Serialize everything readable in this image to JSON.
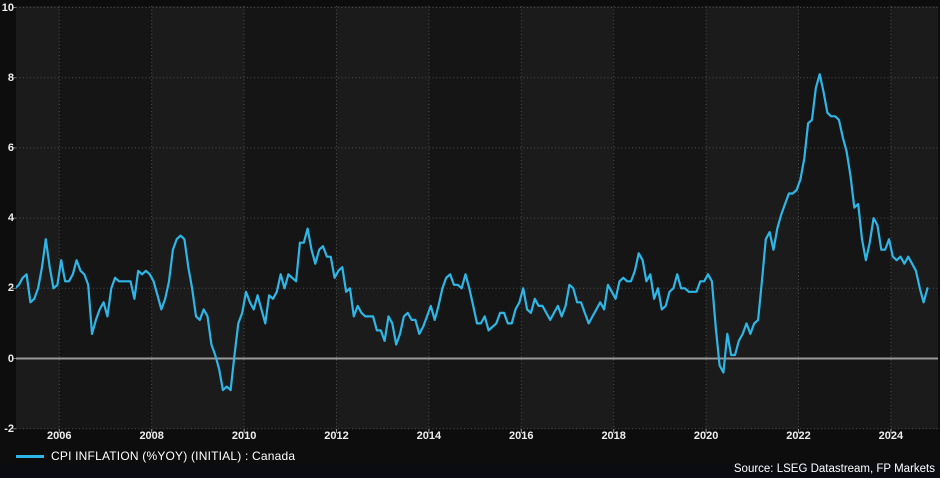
{
  "chart": {
    "legend_label": "CPI INFLATION (%YOY) (INITIAL) : Canada",
    "source_text": "Source: LSEG Datastream, FP Markets",
    "line_color": "#2db6e6",
    "zero_line_color": "#9a9a9a",
    "grid_color": "#4f4f4f",
    "band_light_color": "#1b1b1b",
    "band_dark_color": "#151515",
    "background_color": "#0d0d0d",
    "footer_color": "#0a0c11",
    "axis_text_color": "#ededed"
  },
  "chart_data": {
    "type": "line",
    "title": "",
    "xlabel": "",
    "ylabel": "",
    "legend_position": "bottom-left",
    "grid": "dotted",
    "ylim": [
      -2,
      10
    ],
    "xlim": [
      2005.0,
      2025.0
    ],
    "y_ticks": [
      -2,
      0,
      2,
      4,
      6,
      8,
      10
    ],
    "x_tick_years": [
      2006,
      2008,
      2010,
      2012,
      2014,
      2016,
      2018,
      2020,
      2022,
      2024
    ],
    "x_tick_labels": [
      "2006",
      "2008",
      "2010",
      "2012",
      "2014",
      "2016",
      "2018",
      "2020",
      "2022",
      "2024"
    ],
    "series": [
      {
        "name": "CPI INFLATION (%YOY) (INITIAL) : Canada",
        "color": "#2db6e6",
        "frequency": "monthly",
        "start_year": 2005,
        "start_month": 1,
        "end_year": 2024,
        "end_month": 10,
        "values": [
          2.0,
          2.1,
          2.3,
          2.4,
          1.6,
          1.7,
          2.0,
          2.6,
          3.4,
          2.6,
          2.0,
          2.1,
          2.8,
          2.2,
          2.2,
          2.4,
          2.8,
          2.5,
          2.4,
          2.1,
          0.7,
          1.1,
          1.4,
          1.6,
          1.2,
          2.0,
          2.3,
          2.2,
          2.2,
          2.2,
          2.2,
          1.7,
          2.5,
          2.4,
          2.5,
          2.4,
          2.2,
          1.8,
          1.4,
          1.7,
          2.2,
          3.1,
          3.4,
          3.5,
          3.4,
          2.6,
          2.0,
          1.2,
          1.1,
          1.4,
          1.2,
          0.4,
          0.1,
          -0.3,
          -0.9,
          -0.8,
          -0.9,
          0.1,
          1.0,
          1.3,
          1.9,
          1.6,
          1.4,
          1.8,
          1.4,
          1.0,
          1.8,
          1.7,
          1.9,
          2.4,
          2.0,
          2.4,
          2.3,
          2.2,
          3.3,
          3.3,
          3.7,
          3.1,
          2.7,
          3.1,
          3.2,
          2.9,
          2.9,
          2.3,
          2.5,
          2.6,
          1.9,
          2.0,
          1.2,
          1.5,
          1.3,
          1.2,
          1.2,
          1.2,
          0.8,
          0.8,
          0.5,
          1.2,
          1.0,
          0.4,
          0.7,
          1.2,
          1.3,
          1.1,
          1.1,
          0.7,
          0.9,
          1.2,
          1.5,
          1.1,
          1.5,
          2.0,
          2.3,
          2.4,
          2.1,
          2.1,
          2.0,
          2.4,
          2.0,
          1.5,
          1.0,
          1.0,
          1.2,
          0.8,
          0.9,
          1.0,
          1.3,
          1.3,
          1.0,
          1.0,
          1.4,
          1.6,
          2.0,
          1.4,
          1.3,
          1.7,
          1.5,
          1.5,
          1.3,
          1.1,
          1.3,
          1.5,
          1.2,
          1.5,
          2.1,
          2.0,
          1.6,
          1.6,
          1.3,
          1.0,
          1.2,
          1.4,
          1.6,
          1.4,
          2.1,
          1.9,
          1.7,
          2.2,
          2.3,
          2.2,
          2.2,
          2.5,
          3.0,
          2.8,
          2.2,
          2.4,
          1.7,
          2.0,
          1.4,
          1.5,
          1.9,
          2.0,
          2.4,
          2.0,
          2.0,
          1.9,
          1.9,
          1.9,
          2.2,
          2.2,
          2.4,
          2.2,
          0.9,
          -0.2,
          -0.4,
          0.7,
          0.1,
          0.1,
          0.5,
          0.7,
          1.0,
          0.7,
          1.0,
          1.1,
          2.2,
          3.4,
          3.6,
          3.1,
          3.7,
          4.1,
          4.4,
          4.7,
          4.7,
          4.8,
          5.1,
          5.7,
          6.7,
          6.8,
          7.7,
          8.1,
          7.6,
          7.0,
          6.9,
          6.9,
          6.8,
          6.3,
          5.9,
          5.2,
          4.3,
          4.4,
          3.4,
          2.8,
          3.3,
          4.0,
          3.8,
          3.1,
          3.1,
          3.4,
          2.9,
          2.8,
          2.9,
          2.7,
          2.9,
          2.7,
          2.5,
          2.0,
          1.6,
          2.0
        ]
      }
    ]
  }
}
